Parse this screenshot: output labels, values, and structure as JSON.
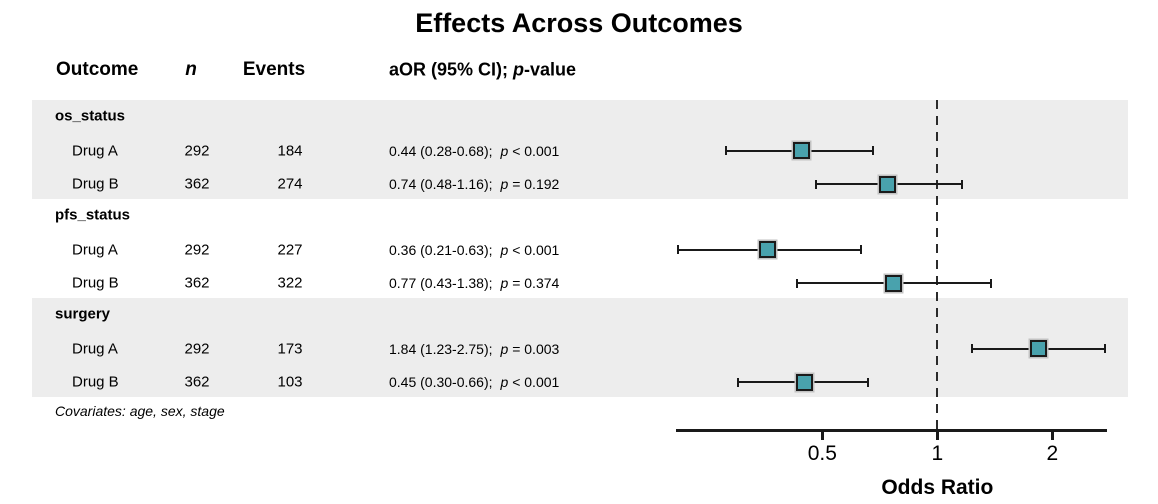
{
  "title": "Effects Across Outcomes",
  "header": {
    "outcome": "Outcome",
    "n": "n",
    "events": "Events",
    "estimate_prefix": "aOR (95% CI); ",
    "estimate_p": "p",
    "estimate_suffix": "-value"
  },
  "footnote": "Covariates: age, sex, stage",
  "colors": {
    "band": "#EDEDED",
    "marker_fill": "#49A2AD",
    "marker_border": "#1B1B1B",
    "marker_halo": "#C2C2C2",
    "line": "#1A1A1A",
    "text": "#000000"
  },
  "chart_data": {
    "type": "forest",
    "title": "Effects Across Outcomes",
    "xlabel": "Odds Ratio",
    "x_scale": "log2",
    "x_range": [
      0.207,
      2.78
    ],
    "x_ticks": [
      0.5,
      1,
      2
    ],
    "x_tick_labels": [
      "0.5",
      "1",
      "2"
    ],
    "reference_line": 1,
    "marker": "square",
    "groups": [
      {
        "label": "os_status",
        "rows": [
          {
            "label": "Drug A",
            "n": "292",
            "events": "184",
            "estimate": "0.44 (0.28-0.68);",
            "p": "p < 0.001",
            "or": 0.44,
            "ci_low": 0.28,
            "ci_high": 0.68
          },
          {
            "label": "Drug B",
            "n": "362",
            "events": "274",
            "estimate": "0.74 (0.48-1.16);",
            "p": "p = 0.192",
            "or": 0.74,
            "ci_low": 0.48,
            "ci_high": 1.16
          }
        ]
      },
      {
        "label": "pfs_status",
        "rows": [
          {
            "label": "Drug A",
            "n": "292",
            "events": "227",
            "estimate": "0.36 (0.21-0.63);",
            "p": "p < 0.001",
            "or": 0.36,
            "ci_low": 0.21,
            "ci_high": 0.63
          },
          {
            "label": "Drug B",
            "n": "362",
            "events": "322",
            "estimate": "0.77 (0.43-1.38);",
            "p": "p = 0.374",
            "or": 0.77,
            "ci_low": 0.43,
            "ci_high": 1.38
          }
        ]
      },
      {
        "label": "surgery",
        "rows": [
          {
            "label": "Drug A",
            "n": "292",
            "events": "173",
            "estimate": "1.84 (1.23-2.75);",
            "p": "p = 0.003",
            "or": 1.84,
            "ci_low": 1.23,
            "ci_high": 2.75
          },
          {
            "label": "Drug B",
            "n": "362",
            "events": "103",
            "estimate": "0.45 (0.30-0.66);",
            "p": "p < 0.001",
            "or": 0.45,
            "ci_low": 0.3,
            "ci_high": 0.66
          }
        ]
      }
    ]
  }
}
